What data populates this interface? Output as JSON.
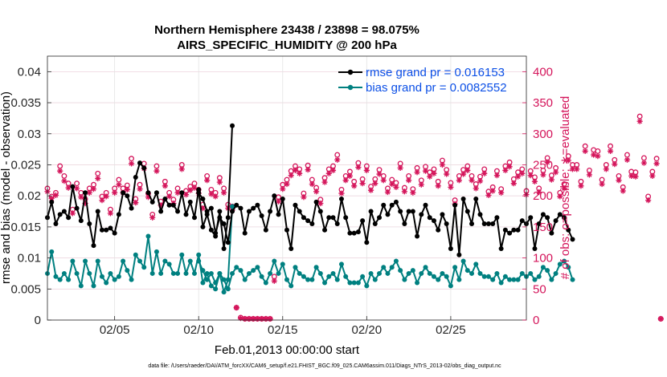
{
  "chart_data": {
    "type": "line",
    "title_line1": "Northern Hemisphere 23438 / 23898 = 98.075%",
    "title_line2": "AIRS_SPECIFIC_HUMIDITY @ 200 hPa",
    "xlabel": "Feb.01,2013 00:00:00 start",
    "ylabel_left": "rmse and bias (model - observation)",
    "ylabel_right": "# of obs: o=possible; ∗=evaluated",
    "footnote": "data file: /Users/raeder/DAI/ATM_forcXX/CAM6_setup/f.e21.FHIST_BGC.f09_025.CAM6assim.011/Diags_NTrS_2013-02/obs_diag_output.nc",
    "xlim": [
      1,
      29.5
    ],
    "ylim_left": [
      0,
      0.0425
    ],
    "ylim_right": [
      0,
      425
    ],
    "x_ticks": [
      5,
      10,
      15,
      20,
      25
    ],
    "x_tick_labels": [
      "02/05",
      "02/10",
      "02/15",
      "02/20",
      "02/25"
    ],
    "y_ticks_left": [
      0,
      0.005,
      0.01,
      0.015,
      0.02,
      0.025,
      0.03,
      0.035,
      0.04
    ],
    "y_tick_labels_left": [
      "0",
      "0.005",
      "0.01",
      "0.015",
      "0.02",
      "0.025",
      "0.03",
      "0.035",
      "0.04"
    ],
    "y_ticks_right": [
      0,
      50,
      100,
      150,
      200,
      250,
      300,
      350,
      400
    ],
    "y_tick_labels_right": [
      "0",
      "50",
      "100",
      "150",
      "200",
      "250",
      "300",
      "350",
      "400"
    ],
    "colors": {
      "rmse": "#000000",
      "bias": "#008080",
      "obs": "#d4145a",
      "grid": "#e3e3e3",
      "legend_text": "#0b4fe6"
    },
    "series": [
      {
        "name": "rmse",
        "legend": "rmse grand pr = 0.016153",
        "segments": [
          {
            "x_start": 1.0,
            "dx": 0.25,
            "values": [
              0.0165,
              0.019,
              0.0155,
              0.017,
              0.0175,
              0.0165,
              0.0215,
              0.018,
              0.016,
              0.0205,
              0.0155,
              0.012,
              0.0175,
              0.0145,
              0.0145,
              0.0148,
              0.014,
              0.017,
              0.0205,
              0.02,
              0.018,
              0.023,
              0.0253,
              0.0245,
              0.0205,
              0.019,
              0.0205,
              0.0175,
              0.0195,
              0.0185,
              0.0185,
              0.0175,
              0.0205,
              0.017,
              0.019,
              0.0165,
              0.021,
              0.015,
              0.017,
              0.0145,
              0.0135,
              0.0175,
              0.0115,
              0.0165,
              0.0313
            ]
          },
          {
            "x_start": 10.0,
            "dx": 0.25,
            "values": [
              0.0205,
              0.0195,
              0.0175,
              0.018,
              0.014,
              0.0165,
              0.0155,
              0.0125,
              0.0175,
              0.0185,
              0.018,
              0.014,
              0.0175,
              0.018,
              0.0185,
              0.0168,
              0.0145,
              0.0175,
              0.02,
              0.017,
              0.0195,
              0.0145,
              0.0115,
              0.0185,
              0.0175,
              0.0165,
              0.016,
              0.0155,
              0.019,
              0.0175,
              0.0145,
              0.0165,
              0.0165,
              0.0155,
              0.0195,
              0.0165,
              0.014,
              0.014,
              0.0142,
              0.016,
              0.0125,
              0.0175,
              0.0155,
              0.0165,
              0.0185,
              0.017,
              0.0185,
              0.019,
              0.0175,
              0.0155,
              0.0175,
              0.0175,
              0.0135,
              0.017,
              0.0185,
              0.0165,
              0.016,
              0.0145,
              0.017,
              0.0155,
              0.0115,
              0.0185,
              0.0105,
              0.0195,
              0.0175,
              0.0155,
              0.0195,
              0.017,
              0.0155,
              0.0155,
              0.0155,
              0.0165,
              0.0115,
              0.0145,
              0.014,
              0.0145,
              0.0145,
              0.016,
              0.0155,
              0.0165,
              0.0115,
              0.0155,
              0.017,
              0.0165,
              0.014,
              0.016,
              0.017,
              0.0165,
              0.0145,
              0.013
            ]
          }
        ]
      },
      {
        "name": "bias",
        "legend": "bias grand pr = 0.0082552",
        "segments": [
          {
            "x_start": 1.0,
            "dx": 0.25,
            "values": [
              0.0075,
              0.011,
              0.007,
              0.0065,
              0.0075,
              0.0065,
              0.0095,
              0.0075,
              0.0055,
              0.0095,
              0.0075,
              0.0055,
              0.0095,
              0.007,
              0.006,
              0.0075,
              0.0065,
              0.007,
              0.0095,
              0.008,
              0.0065,
              0.0105,
              0.0095,
              0.0085,
              0.0135,
              0.0075,
              0.011,
              0.0075,
              0.0095,
              0.009,
              0.0075,
              0.0075,
              0.0105,
              0.0075,
              0.0095,
              0.0075,
              0.0105,
              0.006,
              0.0075,
              0.0055,
              0.005,
              0.0075,
              0.0045,
              0.0065,
              0.0183
            ]
          },
          {
            "x_start": 10.0,
            "dx": 0.25,
            "values": [
              0.0095,
              0.008,
              0.0065,
              0.0075,
              0.006,
              0.0075,
              0.0065,
              0.005,
              0.0075,
              0.0085,
              0.008,
              0.0065,
              0.0075,
              0.008,
              0.0085,
              0.007,
              0.006,
              0.0075,
              0.0095,
              0.0075,
              0.009,
              0.0065,
              0.0055,
              0.0085,
              0.0075,
              0.007,
              0.0065,
              0.0065,
              0.0085,
              0.0075,
              0.006,
              0.007,
              0.0075,
              0.0065,
              0.009,
              0.007,
              0.006,
              0.006,
              0.006,
              0.007,
              0.0055,
              0.0075,
              0.0065,
              0.0075,
              0.0085,
              0.0075,
              0.0085,
              0.0095,
              0.008,
              0.0065,
              0.0075,
              0.008,
              0.006,
              0.0075,
              0.0085,
              0.0075,
              0.007,
              0.0065,
              0.0075,
              0.007,
              0.0055,
              0.0085,
              0.0065,
              0.0095,
              0.008,
              0.0075,
              0.009,
              0.0075,
              0.007,
              0.007,
              0.0065,
              0.0075,
              0.006,
              0.007,
              0.0065,
              0.0065,
              0.0065,
              0.0075,
              0.007,
              0.0075,
              0.0065,
              0.007,
              0.0085,
              0.008,
              0.0065,
              0.0075,
              0.009,
              0.0095,
              0.0085,
              0.0065
            ]
          }
        ]
      }
    ],
    "obs_possible": {
      "marker": "o",
      "x_start": 1.0,
      "dx": 0.25,
      "values": [
        212,
        199,
        205,
        248,
        232,
        220,
        178,
        220,
        205,
        195,
        212,
        218,
        236,
        199,
        205,
        178,
        212,
        226,
        212,
        217,
        260,
        195,
        218,
        252,
        204,
        170,
        248,
        191,
        223,
        205,
        194,
        212,
        250,
        208,
        215,
        220,
        210,
        186,
        232,
        210,
        205,
        229,
        212,
        186,
        183,
        20,
        4,
        2,
        2,
        2,
        2,
        2,
        2,
        2,
        70,
        198,
        218,
        226,
        240,
        248,
        243,
        204,
        249,
        226,
        213,
        194,
        229,
        243,
        248,
        266,
        210,
        232,
        239,
        223,
        253,
        227,
        248,
        215,
        227,
        242,
        232,
        212,
        226,
        221,
        252,
        213,
        232,
        211,
        245,
        225,
        247,
        238,
        243,
        223,
        257,
        242,
        221,
        193,
        232,
        242,
        248,
        232,
        219,
        231,
        243,
        207,
        214,
        240,
        211,
        248,
        254,
        227,
        238,
        243,
        208,
        240,
        230,
        212,
        241,
        261,
        233,
        245,
        205,
        219,
        264,
        250,
        250,
        223,
        280,
        241,
        274,
        272,
        226,
        250,
        280,
        258,
        232,
        214,
        266,
        239,
        238,
        328,
        261,
        199,
        239,
        260,
        2
      ]
    },
    "obs_evaluated": {
      "marker": "*",
      "x_start": 1.0,
      "dx": 0.25,
      "values": [
        207,
        196,
        201,
        240,
        224,
        213,
        172,
        212,
        198,
        188,
        205,
        211,
        228,
        193,
        199,
        172,
        205,
        218,
        205,
        210,
        252,
        189,
        211,
        244,
        198,
        165,
        240,
        185,
        216,
        199,
        188,
        205,
        243,
        202,
        209,
        213,
        204,
        180,
        225,
        203,
        199,
        222,
        205,
        180,
        177,
        20,
        3,
        2,
        2,
        2,
        2,
        2,
        2,
        2,
        63,
        191,
        211,
        219,
        233,
        241,
        236,
        198,
        242,
        219,
        207,
        188,
        222,
        236,
        241,
        258,
        204,
        225,
        232,
        216,
        246,
        220,
        241,
        209,
        220,
        235,
        225,
        206,
        219,
        214,
        245,
        207,
        225,
        205,
        238,
        218,
        240,
        231,
        236,
        216,
        250,
        235,
        214,
        187,
        225,
        235,
        241,
        225,
        212,
        224,
        236,
        201,
        208,
        233,
        205,
        241,
        247,
        220,
        231,
        236,
        202,
        233,
        223,
        206,
        234,
        254,
        226,
        238,
        199,
        212,
        257,
        243,
        243,
        216,
        272,
        234,
        266,
        264,
        219,
        243,
        272,
        251,
        225,
        208,
        258,
        232,
        231,
        320,
        253,
        193,
        232,
        252,
        2
      ]
    }
  }
}
